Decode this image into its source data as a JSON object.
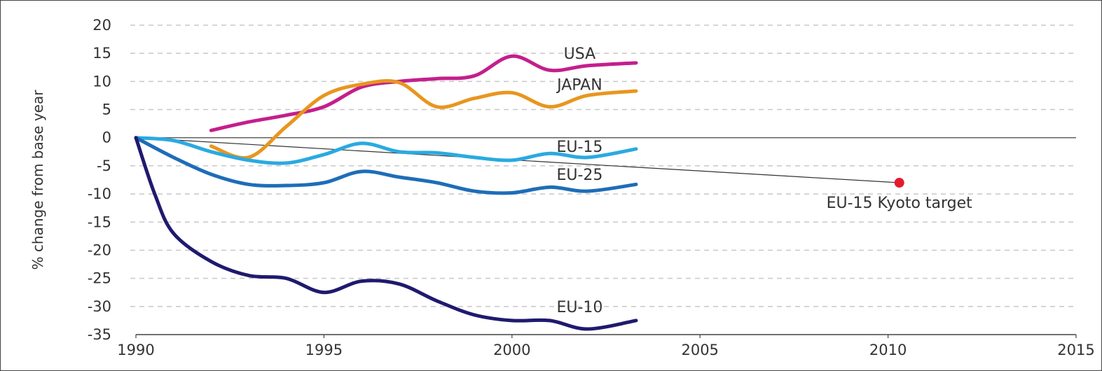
{
  "chart_data": {
    "type": "line",
    "title": "",
    "xlabel": "",
    "ylabel": "% change from base year",
    "xlim": [
      1990,
      2015
    ],
    "ylim": [
      -35,
      20
    ],
    "x_ticks": [
      "1990",
      "1995",
      "2000",
      "2005",
      "2010",
      "2015"
    ],
    "y_ticks": [
      "20",
      "15",
      "10",
      "5",
      "0",
      "-5",
      "-10",
      "-15",
      "-20",
      "-25",
      "-30",
      "-35"
    ],
    "grid": "horizontal dashed",
    "series": [
      {
        "name": "USA",
        "color": "#c41f8c",
        "x": [
          1992,
          1993,
          1994,
          1995,
          1996,
          1997,
          1998,
          1999,
          2000,
          2001,
          2002,
          2003.3
        ],
        "values": [
          1.3,
          2.8,
          4.0,
          5.5,
          9.0,
          10.0,
          10.5,
          11.0,
          14.5,
          12.0,
          12.8,
          13.3
        ]
      },
      {
        "name": "JAPAN",
        "color": "#e8961e",
        "x": [
          1992,
          1993,
          1994,
          1995,
          1996,
          1997,
          1998,
          1999,
          2000,
          2001,
          2002,
          2003.3
        ],
        "values": [
          -1.5,
          -3.5,
          2.0,
          7.5,
          9.5,
          9.8,
          5.5,
          7.0,
          8.0,
          5.5,
          7.5,
          8.3
        ]
      },
      {
        "name": "EU-15",
        "color": "#2aaae0",
        "x": [
          1990,
          1991,
          1992,
          1993,
          1994,
          1995,
          1996,
          1997,
          1998,
          1999,
          2000,
          2001,
          2002,
          2003.3
        ],
        "values": [
          0.0,
          -0.5,
          -2.5,
          -4.0,
          -4.5,
          -3.0,
          -1.0,
          -2.5,
          -2.7,
          -3.5,
          -4.0,
          -2.8,
          -3.5,
          -2.0
        ]
      },
      {
        "name": "EU-25",
        "color": "#1e6db8",
        "x": [
          1990,
          1991,
          1992,
          1993,
          1994,
          1995,
          1996,
          1997,
          1998,
          1999,
          2000,
          2001,
          2002,
          2003.3
        ],
        "values": [
          0.0,
          -3.5,
          -6.5,
          -8.3,
          -8.5,
          -8.0,
          -6.0,
          -7.0,
          -8.0,
          -9.5,
          -9.8,
          -8.8,
          -9.5,
          -8.3
        ]
      },
      {
        "name": "EU-10",
        "color": "#1f1a6e",
        "x": [
          1990,
          1990.5,
          1991,
          1992,
          1993,
          1994,
          1995,
          1996,
          1997,
          1998,
          1999,
          2000,
          2001,
          2002,
          2003.3
        ],
        "values": [
          0.0,
          -10.0,
          -17.0,
          -22.0,
          -24.5,
          -25.0,
          -27.5,
          -25.5,
          -26.0,
          -29.0,
          -31.5,
          -32.5,
          -32.5,
          -34.0,
          -32.5
        ]
      }
    ],
    "target_line": {
      "x": [
        1990,
        2010.3
      ],
      "values": [
        0,
        -8.0
      ],
      "color": "#333333"
    },
    "target_point": {
      "x": 2010.3,
      "value": -8.0,
      "color": "#e41b2d"
    },
    "annotations": [
      {
        "text": "USA",
        "x": 2001.8,
        "value": 15.0
      },
      {
        "text": "JAPAN",
        "x": 2001.8,
        "value": 9.5
      },
      {
        "text": "EU-15",
        "x": 2001.8,
        "value": -1.5
      },
      {
        "text": "EU-25",
        "x": 2001.8,
        "value": -6.5
      },
      {
        "text": "EU-10",
        "x": 2001.8,
        "value": -30.0
      },
      {
        "text": "EU-15 Kyoto target",
        "x": 2010.3,
        "value": -11.5
      }
    ]
  }
}
